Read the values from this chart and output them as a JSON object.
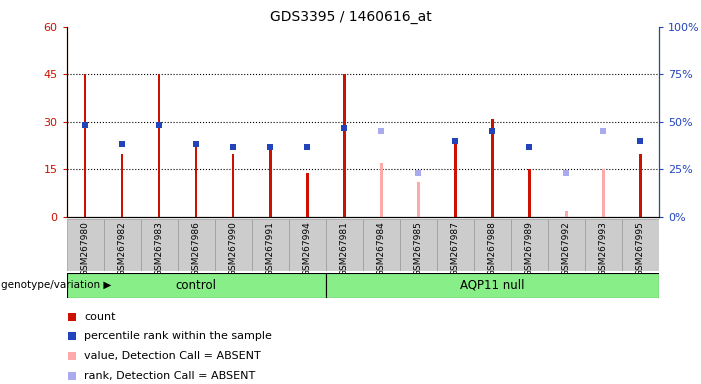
{
  "title": "GDS3395 / 1460616_at",
  "samples": [
    "GSM267980",
    "GSM267982",
    "GSM267983",
    "GSM267986",
    "GSM267990",
    "GSM267991",
    "GSM267994",
    "GSM267981",
    "GSM267984",
    "GSM267985",
    "GSM267987",
    "GSM267988",
    "GSM267989",
    "GSM267992",
    "GSM267993",
    "GSM267995"
  ],
  "groups": [
    "control",
    "control",
    "control",
    "control",
    "control",
    "control",
    "control",
    "AQP11 null",
    "AQP11 null",
    "AQP11 null",
    "AQP11 null",
    "AQP11 null",
    "AQP11 null",
    "AQP11 null",
    "AQP11 null",
    "AQP11 null"
  ],
  "count_values": [
    45,
    20,
    45,
    22,
    20,
    21,
    14,
    45,
    null,
    null,
    23,
    31,
    15,
    null,
    null,
    20
  ],
  "count_absent": [
    null,
    null,
    null,
    null,
    null,
    null,
    null,
    null,
    17,
    11,
    null,
    null,
    null,
    2,
    15,
    null
  ],
  "rank_values": [
    29,
    23,
    29,
    23,
    22,
    22,
    22,
    28,
    null,
    null,
    24,
    27,
    22,
    null,
    null,
    24
  ],
  "rank_absent": [
    null,
    null,
    null,
    null,
    null,
    null,
    null,
    null,
    27,
    14,
    null,
    null,
    null,
    14,
    27,
    null
  ],
  "n_control": 7,
  "n_aqp": 9,
  "ylim_left": [
    0,
    60
  ],
  "ylim_right": [
    0,
    100
  ],
  "yticks_left": [
    0,
    15,
    30,
    45,
    60
  ],
  "ytick_labels_left": [
    "0",
    "15",
    "30",
    "45",
    "60"
  ],
  "ytick_labels_right": [
    "0%",
    "25%",
    "50%",
    "75%",
    "100%"
  ],
  "color_count": "#cc1100",
  "color_rank": "#2244bb",
  "color_count_absent": "#ffaaaa",
  "color_rank_absent": "#aaaaee",
  "bar_width": 0.07,
  "rank_square_size": 5,
  "background_color": "#ffffff",
  "group_bg": "#88ee88",
  "tick_area_bg": "#cccccc",
  "legend_items": [
    "count",
    "percentile rank within the sample",
    "value, Detection Call = ABSENT",
    "rank, Detection Call = ABSENT"
  ],
  "group_label_text": "genotype/variation"
}
